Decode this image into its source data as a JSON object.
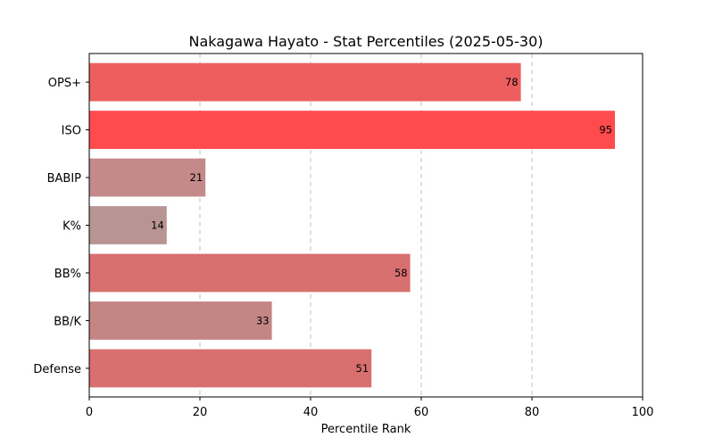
{
  "chart_data": {
    "type": "bar",
    "orientation": "horizontal",
    "title": "Nakagawa Hayato - Stat Percentiles (2025-05-30)",
    "xlabel": "Percentile Rank",
    "ylabel": "",
    "xlim": [
      0,
      100
    ],
    "xticks": [
      0,
      20,
      40,
      60,
      80,
      100
    ],
    "grid": "x-dashed",
    "categories": [
      "OPS+",
      "ISO",
      "BABIP",
      "K%",
      "BB%",
      "BB/K",
      "Defense"
    ],
    "values": [
      78,
      95,
      21,
      14,
      58,
      33,
      51
    ],
    "colors": [
      "#ed5e5e",
      "#ff4b4b",
      "#c48a8a",
      "#b89593",
      "#d97070",
      "#c48585",
      "#d97070"
    ]
  }
}
